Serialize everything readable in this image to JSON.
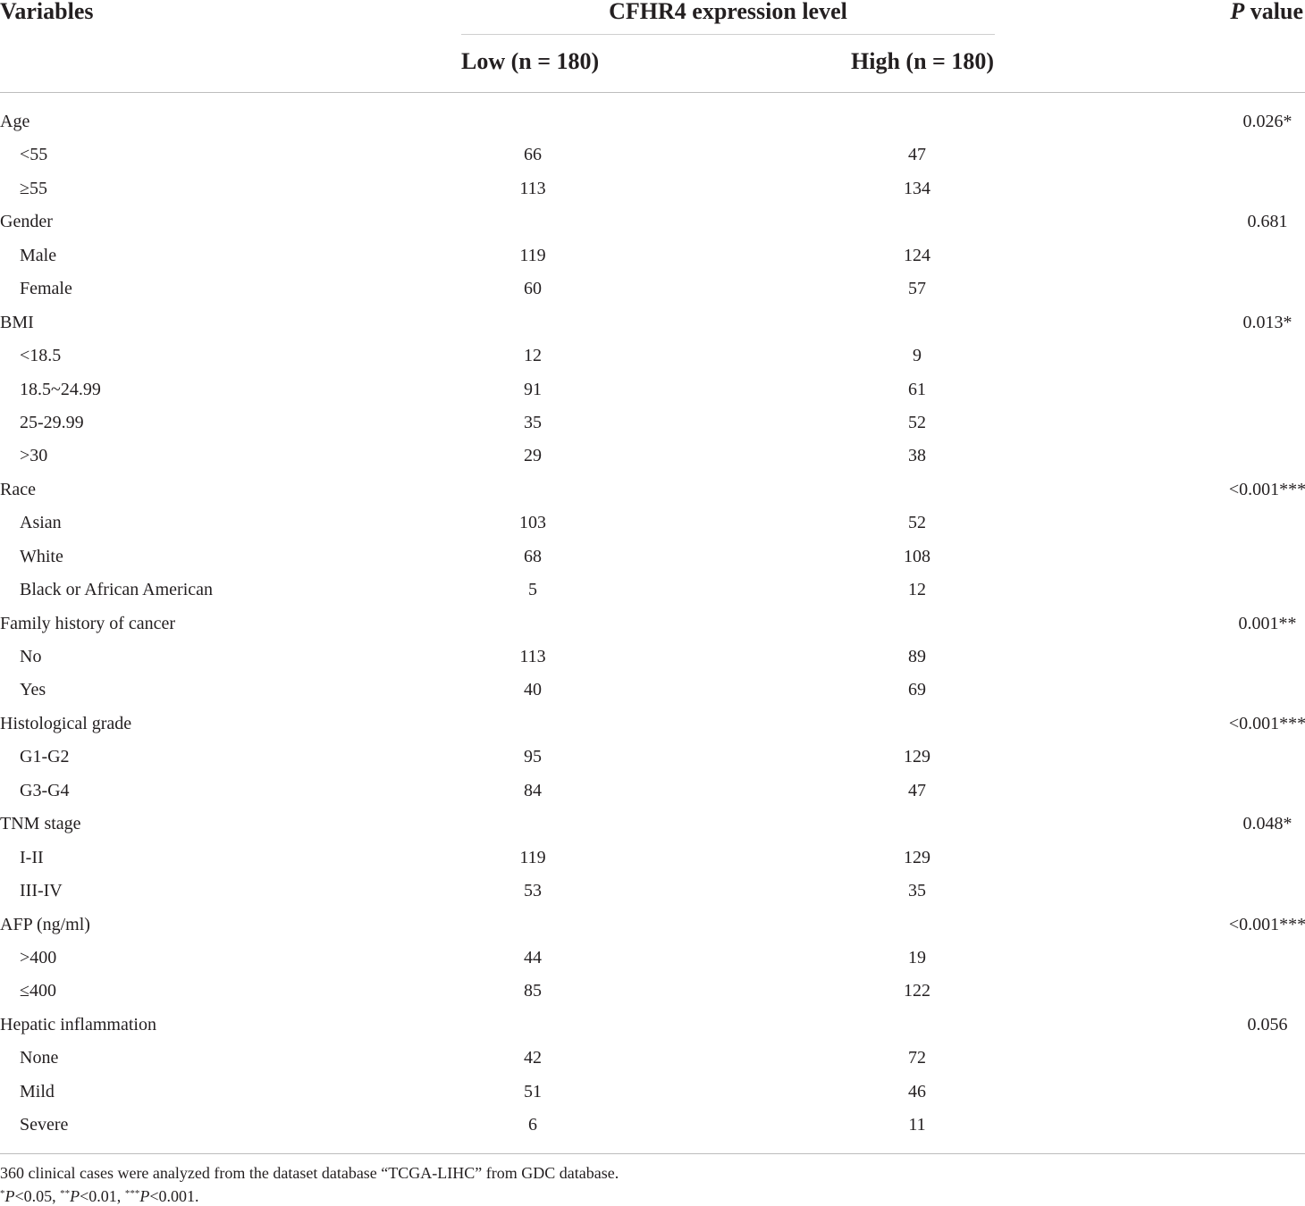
{
  "header": {
    "variables": "Variables",
    "group": "CFHR4 expression level",
    "low": "Low (n = 180)",
    "high": "High (n = 180)",
    "p_italic": "P",
    "p_rest": " value"
  },
  "rows": [
    {
      "label": "Age",
      "low": "",
      "high": "",
      "p": "0.026*",
      "sub": false
    },
    {
      "label": "<55",
      "low": "66",
      "high": "47",
      "p": "",
      "sub": true
    },
    {
      "label": "≥55",
      "low": "113",
      "high": "134",
      "p": "",
      "sub": true
    },
    {
      "label": "Gender",
      "low": "",
      "high": "",
      "p": "0.681",
      "sub": false
    },
    {
      "label": "Male",
      "low": "119",
      "high": "124",
      "p": "",
      "sub": true
    },
    {
      "label": "Female",
      "low": "60",
      "high": "57",
      "p": "",
      "sub": true
    },
    {
      "label": "BMI",
      "low": "",
      "high": "",
      "p": "0.013*",
      "sub": false
    },
    {
      "label": "<18.5",
      "low": "12",
      "high": "9",
      "p": "",
      "sub": true
    },
    {
      "label": "18.5~24.99",
      "low": "91",
      "high": "61",
      "p": "",
      "sub": true
    },
    {
      "label": "25-29.99",
      "low": "35",
      "high": "52",
      "p": "",
      "sub": true
    },
    {
      "label": ">30",
      "low": "29",
      "high": "38",
      "p": "",
      "sub": true
    },
    {
      "label": "Race",
      "low": "",
      "high": "",
      "p": "<0.001***",
      "sub": false
    },
    {
      "label": "Asian",
      "low": "103",
      "high": "52",
      "p": "",
      "sub": true
    },
    {
      "label": "White",
      "low": "68",
      "high": "108",
      "p": "",
      "sub": true
    },
    {
      "label": "Black or African American",
      "low": "5",
      "high": "12",
      "p": "",
      "sub": true
    },
    {
      "label": "Family history of cancer",
      "low": "",
      "high": "",
      "p": "0.001**",
      "sub": false
    },
    {
      "label": "No",
      "low": "113",
      "high": "89",
      "p": "",
      "sub": true
    },
    {
      "label": "Yes",
      "low": "40",
      "high": "69",
      "p": "",
      "sub": true
    },
    {
      "label": "Histological grade",
      "low": "",
      "high": "",
      "p": "<0.001***",
      "sub": false
    },
    {
      "label": "G1-G2",
      "low": "95",
      "high": "129",
      "p": "",
      "sub": true
    },
    {
      "label": "G3-G4",
      "low": "84",
      "high": "47",
      "p": "",
      "sub": true
    },
    {
      "label": "TNM stage",
      "low": "",
      "high": "",
      "p": "0.048*",
      "sub": false
    },
    {
      "label": "I-II",
      "low": "119",
      "high": "129",
      "p": "",
      "sub": true
    },
    {
      "label": "III-IV",
      "low": "53",
      "high": "35",
      "p": "",
      "sub": true
    },
    {
      "label": "AFP (ng/ml)",
      "low": "",
      "high": "",
      "p": "<0.001***",
      "sub": false
    },
    {
      "label": ">400",
      "low": "44",
      "high": "19",
      "p": "",
      "sub": true
    },
    {
      "label": "≤400",
      "low": "85",
      "high": "122",
      "p": "",
      "sub": true
    },
    {
      "label": "Hepatic inflammation",
      "low": "",
      "high": "",
      "p": "0.056",
      "sub": false
    },
    {
      "label": "None",
      "low": "42",
      "high": "72",
      "p": "",
      "sub": true
    },
    {
      "label": "Mild",
      "low": "51",
      "high": "46",
      "p": "",
      "sub": true
    },
    {
      "label": "Severe",
      "low": "6",
      "high": "11",
      "p": "",
      "sub": true
    }
  ],
  "footnote": "360 clinical cases were analyzed from the dataset database “TCGA-LIHC” from GDC database.",
  "significance": [
    {
      "stars": "*",
      "p": "P",
      "rest": "<0.05, "
    },
    {
      "stars": "**",
      "p": "P",
      "rest": "<0.01, "
    },
    {
      "stars": "***",
      "p": "P",
      "rest": "<0.001."
    }
  ]
}
